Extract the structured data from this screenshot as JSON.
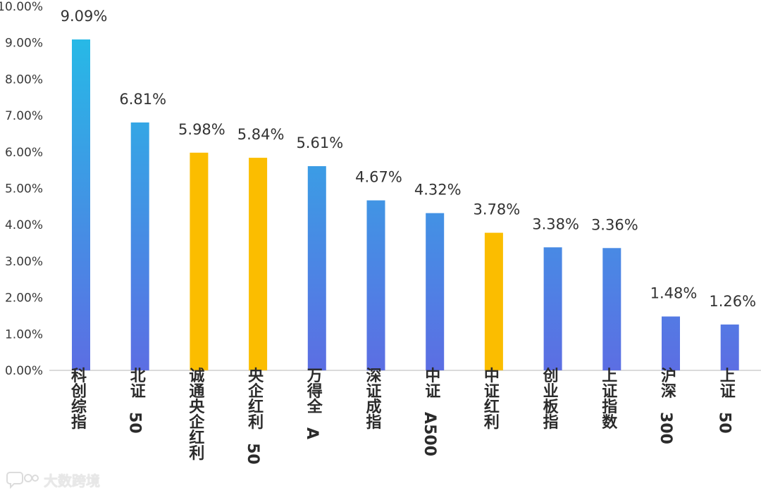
{
  "chart_data": {
    "type": "bar",
    "categories": [
      "科创综指",
      "北证50",
      "诚通央企红利",
      "央企红利50",
      "万得全A",
      "深证成指",
      "中证A500",
      "中证红利",
      "创业板指",
      "上证指数",
      "沪深300",
      "上证50"
    ],
    "values": [
      9.09,
      6.81,
      5.98,
      5.84,
      5.61,
      4.67,
      4.32,
      3.78,
      3.38,
      3.36,
      1.48,
      1.26
    ],
    "value_labels": [
      "9.09%",
      "6.81%",
      "5.98%",
      "5.84%",
      "5.61%",
      "4.67%",
      "4.32%",
      "3.78%",
      "3.38%",
      "3.36%",
      "1.48%",
      "1.26%"
    ],
    "highlighted": [
      false,
      false,
      true,
      true,
      false,
      false,
      false,
      true,
      false,
      false,
      false,
      false
    ],
    "y_ticks": [
      "0.00%",
      "1.00%",
      "2.00%",
      "3.00%",
      "4.00%",
      "5.00%",
      "6.00%",
      "7.00%",
      "8.00%",
      "9.00%",
      "10.00%"
    ],
    "ylim": [
      0,
      10
    ],
    "grid": false,
    "title": "",
    "xlabel": "",
    "ylabel": "",
    "colors": {
      "bar_gradient_top": "#27b9e6",
      "bar_gradient_bottom": "#5c6ee3",
      "highlight": "#fbbd00",
      "axis": "#cfcfcf"
    }
  },
  "watermark": {
    "text": "大数跨境",
    "icon": "chat-bubble-logo-icon"
  }
}
